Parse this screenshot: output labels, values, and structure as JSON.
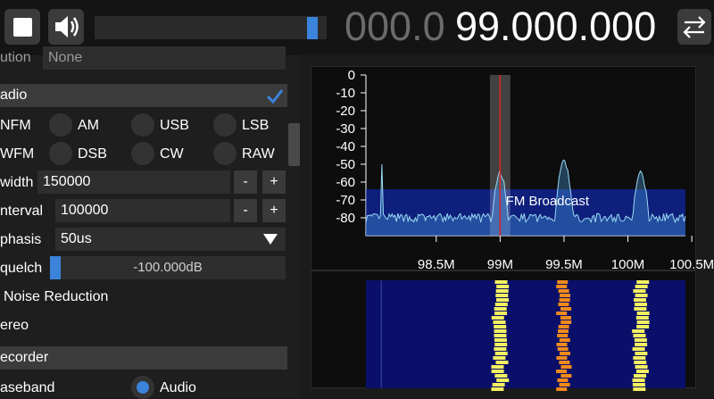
{
  "topbar": {
    "play_stop_icon": "stop-square-icon",
    "volume_icon": "speaker-icon",
    "volume_level": 0.96,
    "frequency_dim": "000.0",
    "frequency_bright": "99.000.000",
    "swap_icon": "swap-arrows-icon"
  },
  "left": {
    "top_row_label": "ution",
    "top_row_value": "None",
    "section_radio": "adio",
    "modes": [
      {
        "label": "NFM"
      },
      {
        "label": "AM"
      },
      {
        "label": "USB"
      },
      {
        "label": "LSB"
      },
      {
        "label": "WFM"
      },
      {
        "label": "DSB"
      },
      {
        "label": "CW"
      },
      {
        "label": "RAW"
      }
    ],
    "bandwidth_label": "width",
    "bandwidth_value": "150000",
    "interval_label": "nterval",
    "interval_value": "100000",
    "minus": "-",
    "plus": "+",
    "deemphasis_label": "phasis",
    "deemphasis_value": "50us",
    "squelch_label": "quelch",
    "squelch_value": "-100.000dB",
    "noise_reduction_label": "Noise Reduction",
    "stereo_label": "ereo",
    "section_recorder": "ecorder",
    "baseband_label": "aseband",
    "audio_label": "Audio"
  },
  "chart_data": {
    "type": "area",
    "title": "",
    "y_ticks": [
      "0",
      "-10",
      "-20",
      "-30",
      "-40",
      "-50",
      "-60",
      "-70",
      "-80"
    ],
    "ylim": [
      -90,
      0
    ],
    "x_ticks": [
      "98.5M",
      "99M",
      "99.5M",
      "100M",
      "100.5M"
    ],
    "xlim_mhz": [
      97.95,
      100.45
    ],
    "tuned_mhz": 99.0,
    "band_label": "FM Broadcast",
    "peaks_mhz": [
      99.0,
      99.5,
      100.1
    ],
    "noise_floor_db": -80,
    "peak_levels_db": [
      -55,
      -49,
      -55
    ],
    "colors": {
      "spectrum": "#9ad9f5",
      "band": "#0a1fa8",
      "tuned": "#e22222"
    }
  }
}
